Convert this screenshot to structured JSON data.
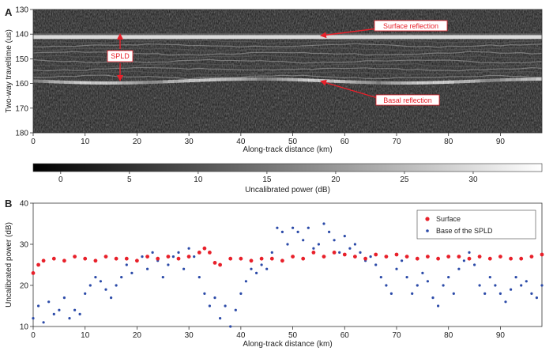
{
  "panel_a": {
    "label": "A",
    "ylabel": "Two-way traveltime (us)",
    "xlabel": "Along-track distance (km)",
    "y_ticks": [
      "130",
      "140",
      "150",
      "160",
      "170",
      "180"
    ],
    "x_ticks": [
      "0",
      "10",
      "20",
      "30",
      "40",
      "50",
      "60",
      "70",
      "80",
      "90"
    ],
    "annotations": {
      "surface": "Surface reflection",
      "basal": "Basal reflection",
      "spld": "SPLD"
    }
  },
  "colorbar": {
    "label": "Uncalibrated power (dB)",
    "ticks": [
      "0",
      "5",
      "10",
      "15",
      "20",
      "25",
      "30"
    ]
  },
  "panel_b": {
    "label": "B",
    "ylabel": "Uncalibrated power (dB)",
    "xlabel": "Along-track distance (km)",
    "y_ticks": [
      "10",
      "20",
      "30",
      "40"
    ],
    "x_ticks": [
      "0",
      "10",
      "20",
      "30",
      "40",
      "50",
      "60",
      "70",
      "80",
      "90"
    ],
    "legend": [
      "Surface",
      "Base of the SPLD"
    ]
  },
  "colors": {
    "surface": "#e8202a",
    "base": "#2b4aa8",
    "annotation": "#e8202a"
  },
  "chart_data": [
    {
      "type": "heatmap",
      "title": "",
      "xlabel": "Along-track distance (km)",
      "ylabel": "Two-way traveltime (us)",
      "xlim": [
        0,
        98
      ],
      "ylim": [
        180,
        130
      ],
      "colorbar_label": "Uncalibrated power (dB)",
      "colorbar_range": [
        -2,
        35
      ],
      "features": [
        {
          "label": "Surface reflection",
          "traveltime_us": 141,
          "km": 55
        },
        {
          "label": "Basal reflection",
          "traveltime_us": 159,
          "km": 55
        },
        {
          "label": "SPLD",
          "traveltime_us": [
            141,
            159
          ],
          "km": 17
        }
      ]
    },
    {
      "type": "scatter",
      "title": "",
      "xlabel": "Along-track distance (km)",
      "ylabel": "Uncalibrated power (dB)",
      "xlim": [
        0,
        98
      ],
      "ylim": [
        10,
        40
      ],
      "legend_position": "top-right",
      "series": [
        {
          "name": "Surface",
          "x": [
            0,
            1,
            2,
            4,
            6,
            8,
            10,
            12,
            14,
            16,
            18,
            20,
            22,
            24,
            26,
            28,
            30,
            32,
            33,
            34,
            35,
            36,
            38,
            40,
            42,
            44,
            46,
            48,
            50,
            52,
            54,
            56,
            58,
            60,
            62,
            64,
            66,
            68,
            70,
            72,
            74,
            76,
            78,
            80,
            82,
            84,
            86,
            88,
            90,
            92,
            94,
            96,
            98
          ],
          "y": [
            23,
            25,
            26,
            26.5,
            26,
            27,
            26.5,
            26,
            27,
            26.5,
            26.5,
            26,
            27,
            26.5,
            27,
            26.5,
            27,
            28,
            29,
            28,
            25.5,
            25,
            26.5,
            26.5,
            26,
            26.5,
            26.5,
            26,
            27,
            26.5,
            28,
            27,
            28,
            27.5,
            27,
            26.5,
            27.5,
            27,
            27.5,
            27,
            26.5,
            27,
            26.5,
            27,
            27,
            26.5,
            27,
            26.5,
            27,
            26.5,
            26.5,
            27,
            27.5
          ]
        },
        {
          "name": "Base of the SPLD",
          "x": [
            0,
            1,
            2,
            3,
            4,
            5,
            6,
            7,
            8,
            9,
            10,
            11,
            12,
            13,
            14,
            15,
            16,
            17,
            18,
            19,
            20,
            21,
            22,
            23,
            24,
            25,
            26,
            27,
            28,
            29,
            30,
            31,
            32,
            33,
            34,
            35,
            36,
            37,
            38,
            39,
            40,
            41,
            42,
            43,
            44,
            45,
            46,
            47,
            48,
            49,
            50,
            51,
            52,
            53,
            54,
            55,
            56,
            57,
            58,
            59,
            60,
            61,
            62,
            63,
            64,
            65,
            66,
            67,
            68,
            69,
            70,
            71,
            72,
            73,
            74,
            75,
            76,
            77,
            78,
            79,
            80,
            81,
            82,
            83,
            84,
            85,
            86,
            87,
            88,
            89,
            90,
            91,
            92,
            93,
            94,
            95,
            96,
            97,
            98
          ],
          "y": [
            12,
            15,
            11,
            16,
            13,
            14,
            17,
            12,
            14,
            13,
            18,
            20,
            22,
            21,
            19,
            17,
            20,
            22,
            25,
            23,
            26,
            27,
            24,
            28,
            26,
            22,
            25,
            27,
            28,
            24,
            29,
            27,
            22,
            18,
            15,
            17,
            12,
            15,
            10,
            14,
            18,
            21,
            24,
            23,
            25,
            24,
            28,
            34,
            33,
            30,
            34,
            33,
            31,
            34,
            29,
            30,
            35,
            33,
            31,
            28,
            32,
            29,
            30,
            28,
            26,
            27,
            25,
            22,
            20,
            18,
            24,
            26,
            22,
            18,
            20,
            23,
            21,
            17,
            15,
            20,
            22,
            18,
            24,
            26,
            28,
            25,
            20,
            18,
            22,
            20,
            18,
            16,
            19,
            22,
            20,
            21,
            18,
            17,
            20
          ]
        }
      ]
    }
  ]
}
